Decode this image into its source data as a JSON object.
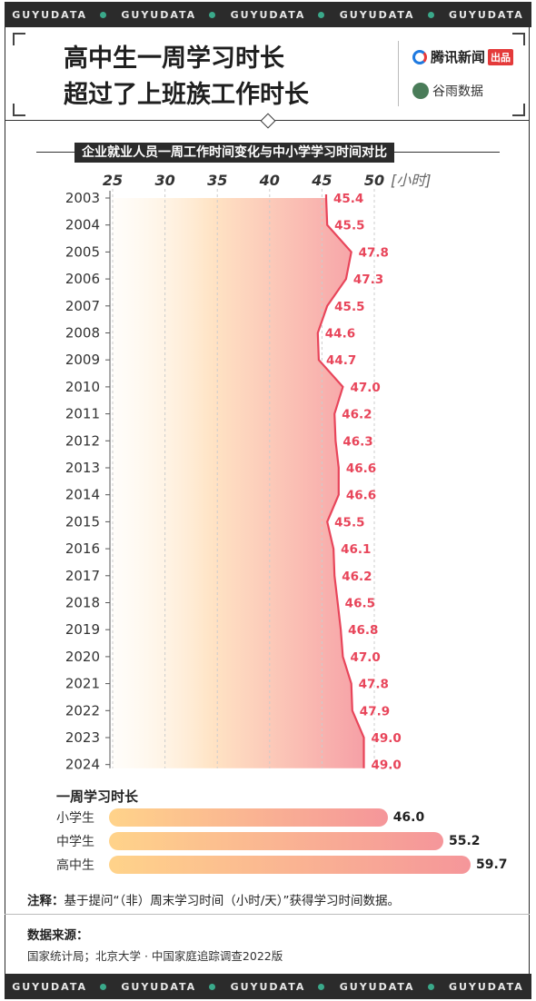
{
  "strip_text": "GUYUDATA",
  "title_line1": "高中生一周学习时长",
  "title_line2": "超过了上班族工作时长",
  "brand_tencent": "腾讯新闻",
  "brand_tencent_tag": "出品",
  "brand_guyu": "谷雨数据",
  "chart_subtitle": "企业就业人员一周工作时间变化与中小学学习时间对比",
  "colors": {
    "line": "#e8455a",
    "label": "#e8455a",
    "grad_start": "#ffd38a",
    "grad_end": "#f5969a"
  },
  "chart_data": {
    "type": "area",
    "x_axis_ticks": [
      "25",
      "30",
      "35",
      "40",
      "45",
      "50"
    ],
    "x_unit": "[小时]",
    "xlim": [
      25,
      50
    ],
    "categories": [
      "2003",
      "2004",
      "2005",
      "2006",
      "2007",
      "2008",
      "2009",
      "2010",
      "2011",
      "2012",
      "2013",
      "2014",
      "2015",
      "2016",
      "2017",
      "2018",
      "2019",
      "2020",
      "2021",
      "2022",
      "2023",
      "2024"
    ],
    "values": [
      45.4,
      45.5,
      47.8,
      47.3,
      45.5,
      44.6,
      44.7,
      47.0,
      46.2,
      46.3,
      46.6,
      46.6,
      45.5,
      46.1,
      46.2,
      46.5,
      46.8,
      47.0,
      47.8,
      47.9,
      49.0,
      49.0
    ],
    "value_labels": [
      "45.4",
      "45.5",
      "47.8",
      "47.3",
      "45.5",
      "44.6",
      "44.7",
      "47.0",
      "46.2",
      "46.3",
      "46.6",
      "46.6",
      "45.5",
      "46.1",
      "46.2",
      "46.5",
      "46.8",
      "47.0",
      "47.8",
      "47.9",
      "49.0",
      "49.0"
    ]
  },
  "study_chart": {
    "title": "一周学习时长",
    "xlim": [
      0,
      60
    ],
    "rows": [
      {
        "label": "小学生",
        "value": 46.0,
        "value_text": "46.0"
      },
      {
        "label": "中学生",
        "value": 55.2,
        "value_text": "55.2"
      },
      {
        "label": "高中生",
        "value": 59.7,
        "value_text": "59.7"
      }
    ]
  },
  "note_label": "注释：",
  "note_text": "基于提问“（非）周末学习时间（小时/天）”获得学习时间数据。",
  "source_title": "数据来源：",
  "source_text": "国家统计局；北京大学 · 中国家庭追踪调查2022版"
}
